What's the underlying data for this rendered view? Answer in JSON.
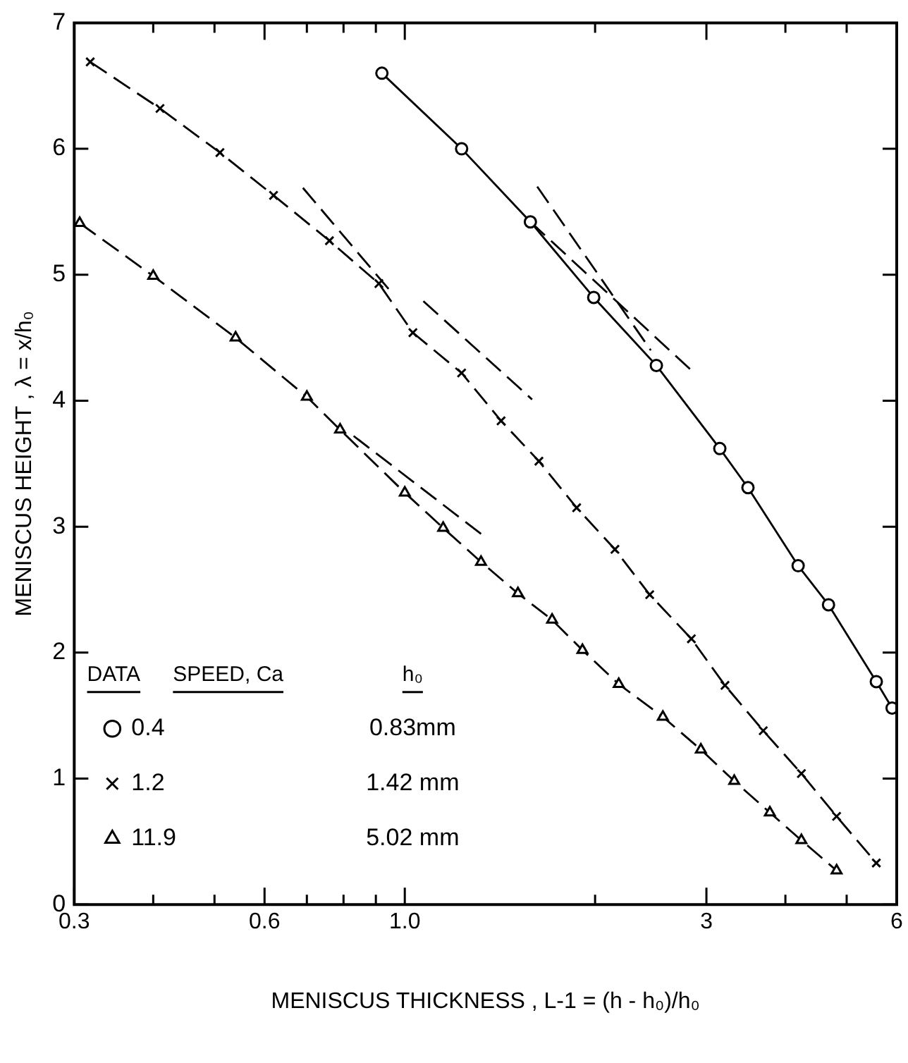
{
  "chart_data": {
    "type": "line",
    "xlabel": "MENISCUS THICKNESS , L-1 = (h - h₀)/h₀",
    "ylabel": "MENISCUS HEIGHT , λ = x/h₀",
    "log": "x",
    "xlim": [
      0.3,
      6
    ],
    "ylim": [
      0,
      7
    ],
    "xticks": [
      0.3,
      {
        "value": 0.4,
        "label": null
      },
      {
        "value": 0.5,
        "label": null
      },
      0.6,
      {
        "value": 0.7,
        "label": null
      },
      {
        "value": 0.8,
        "label": null
      },
      {
        "value": 0.9,
        "label": null
      },
      {
        "value": 1,
        "label": "1.0"
      },
      {
        "value": 2,
        "label": null
      },
      3,
      {
        "value": 4,
        "label": null
      },
      {
        "value": 5,
        "label": null
      },
      6
    ],
    "yticks": [
      0,
      1,
      2,
      3,
      4,
      5,
      6,
      7
    ],
    "grid": false,
    "legend": "bottom left",
    "legend_title": "DATA",
    "annotations": [
      "SPEED, Ca",
      "h₀",
      "0.83mm",
      "1.42 mm",
      "5.02 mm"
    ],
    "series": [
      {
        "name": "0.4",
        "color": "#000000",
        "marker": "circle",
        "line_style": "solid",
        "x": [
          0.92,
          1.23,
          1.58,
          1.99,
          2.5,
          3.15,
          3.49,
          4.19,
          4.68,
          5.57,
          5.9
        ],
        "values": [
          6.6,
          6.0,
          5.42,
          4.82,
          4.28,
          3.62,
          3.31,
          2.69,
          2.38,
          1.77,
          1.56
        ]
      },
      {
        "name": "1.2",
        "color": "#000000",
        "marker": "cross",
        "line_style": "dashed",
        "x": [
          0.318,
          0.41,
          0.51,
          0.62,
          0.76,
          0.91,
          1.03,
          1.23,
          1.42,
          1.63,
          1.87,
          2.15,
          2.44,
          2.84,
          3.21,
          3.69,
          4.24,
          4.82,
          5.57
        ],
        "values": [
          6.69,
          6.32,
          5.97,
          5.63,
          5.27,
          4.93,
          4.54,
          4.22,
          3.84,
          3.52,
          3.15,
          2.82,
          2.46,
          2.11,
          1.74,
          1.38,
          1.04,
          0.7,
          0.33
        ]
      },
      {
        "name": "11.9",
        "color": "#000000",
        "marker": "triangle",
        "line_style": "dashed",
        "x": [
          0.306,
          0.4,
          0.54,
          0.7,
          0.79,
          1.0,
          1.15,
          1.32,
          1.51,
          1.71,
          1.91,
          2.18,
          2.56,
          2.94,
          3.32,
          3.78,
          4.24,
          4.82
        ],
        "values": [
          5.41,
          4.99,
          4.5,
          4.03,
          3.77,
          3.27,
          2.99,
          2.72,
          2.47,
          2.26,
          2.02,
          1.75,
          1.49,
          1.23,
          0.98,
          0.73,
          0.51,
          0.27
        ]
      },
      {
        "color": "#000000",
        "marker": "none",
        "line_style": "dashed",
        "x": [
          1.62,
          2.45
        ],
        "values": [
          5.7,
          4.4
        ]
      },
      {
        "color": "#000000",
        "marker": "none",
        "line_style": "dashed",
        "x": [
          1.58,
          2.87
        ],
        "values": [
          5.42,
          4.22
        ]
      },
      {
        "color": "#000000",
        "marker": "none",
        "line_style": "dashed",
        "x": [
          0.69,
          0.96
        ],
        "values": [
          5.69,
          4.84
        ]
      },
      {
        "color": "#000000",
        "marker": "none",
        "line_style": "dashed",
        "x": [
          1.07,
          1.59
        ],
        "values": [
          4.79,
          4.01
        ]
      },
      {
        "color": "#000000",
        "marker": "none",
        "line_style": "dashed",
        "x": [
          0.83,
          1.33
        ],
        "values": [
          3.72,
          2.93
        ]
      }
    ]
  }
}
